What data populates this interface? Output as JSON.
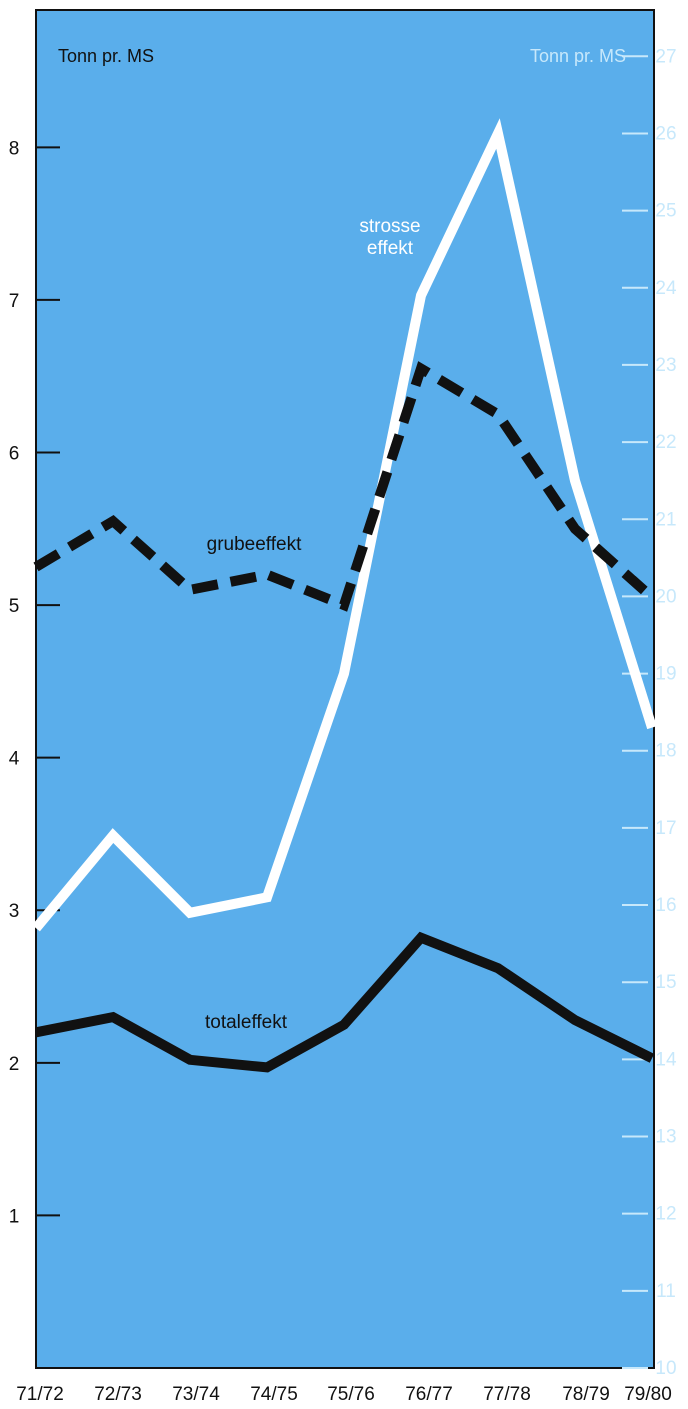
{
  "chart_data": {
    "type": "line",
    "title": "",
    "xlabel": "",
    "categories": [
      "71/72",
      "72/73",
      "73/74",
      "74/75",
      "75/76",
      "76/77",
      "77/78",
      "78/79",
      "79/80"
    ],
    "left_axis": {
      "unit": "Tonn pr. MS",
      "range": [
        0,
        8.9
      ],
      "ticks": [
        1,
        2,
        3,
        4,
        5,
        6,
        7,
        8
      ]
    },
    "right_axis": {
      "unit": "Tonn pr. MS",
      "range": [
        10,
        27.6
      ],
      "ticks": [
        10,
        11,
        12,
        13,
        14,
        15,
        16,
        17,
        18,
        19,
        20,
        21,
        22,
        23,
        24,
        25,
        26,
        27
      ]
    },
    "series": [
      {
        "name": "strosse effekt",
        "label_lines": [
          "strosse",
          "effekt"
        ],
        "axis": "right",
        "values": [
          15.7,
          16.9,
          15.9,
          16.1,
          19.0,
          23.9,
          26.0,
          21.5,
          18.3
        ],
        "color": "#ffffff",
        "style": "solid"
      },
      {
        "name": "grubeeffekt",
        "axis": "left",
        "values": [
          5.25,
          5.55,
          5.1,
          5.2,
          5.0,
          6.55,
          6.25,
          5.5,
          5.05
        ],
        "color": "#111111",
        "style": "dashed"
      },
      {
        "name": "totaleffekt",
        "axis": "left",
        "values": [
          2.2,
          2.3,
          2.02,
          1.97,
          2.25,
          2.82,
          2.62,
          2.28,
          2.03
        ],
        "color": "#111111",
        "style": "solid"
      }
    ],
    "grid": false,
    "colors": {
      "plot_background": "#5aaeeb",
      "right_axis": "#c7e8fb",
      "frame": "#111111"
    }
  }
}
